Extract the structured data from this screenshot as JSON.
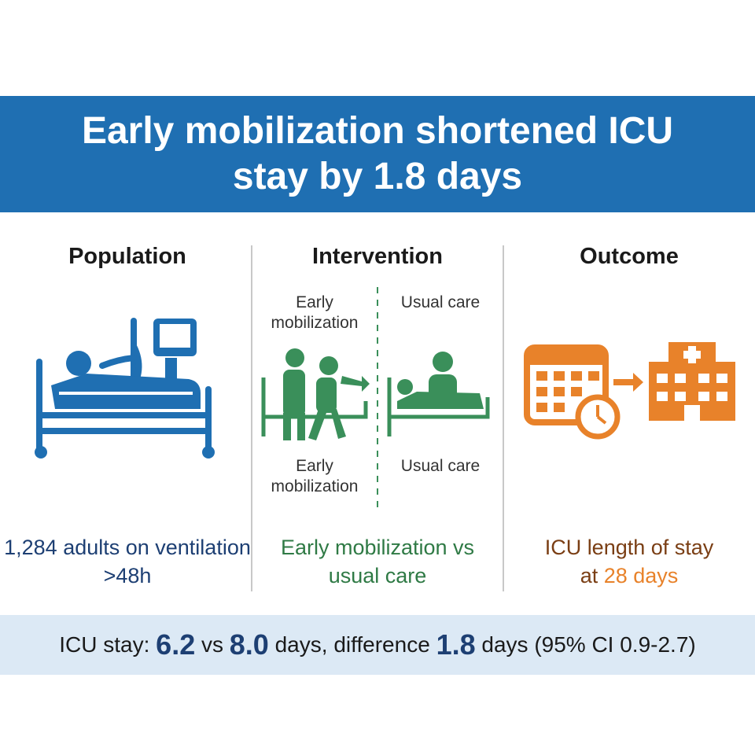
{
  "header": {
    "title": "Early mobilization shortened ICU stay by 1.8 days"
  },
  "population": {
    "heading": "Population",
    "caption": "1,284 adults on ventilation >48h"
  },
  "intervention": {
    "heading": "Intervention",
    "labels": [
      "Early mobilization",
      "Usual care",
      "Early mobilization",
      "Usual care"
    ],
    "caption": "Early mobilization vs usual care"
  },
  "outcome": {
    "heading": "Outcome",
    "caption": [
      "ICU length of stay at",
      "28 days"
    ]
  },
  "footer": {
    "label": "ICU stay:",
    "intervention_value": "6.2",
    "connector": "vs",
    "control_value": "8.0",
    "difference_label": "days, difference",
    "difference_value": "1.8",
    "tail": "days (95% CI 0.9-2.7)"
  }
}
